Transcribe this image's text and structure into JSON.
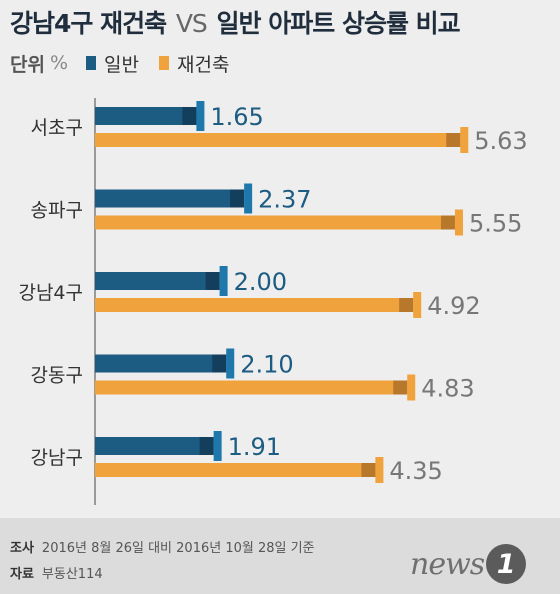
{
  "title": {
    "main": "강남4구 재건축",
    "vs": "VS",
    "rest": "일반 아파트 상승률 비교"
  },
  "legend": {
    "unit_label": "단위",
    "unit": "%"
  },
  "colors": {
    "general": "#1c5b82",
    "general_cap": "#1f78ab",
    "general_dark": "#143f5c",
    "rebuild": "#f0a23c",
    "rebuild_cap": "#f0a23c",
    "rebuild_dark": "#b8782c",
    "axis": "#9a9a9a",
    "general_text": "#1c5b82",
    "rebuild_text": "#777777"
  },
  "chart_data": {
    "type": "bar",
    "orientation": "horizontal",
    "categories": [
      "서초구",
      "송파구",
      "강남4구",
      "강동구",
      "강남구"
    ],
    "series": [
      {
        "name": "일반",
        "values": [
          1.65,
          2.37,
          2.0,
          2.1,
          1.91
        ],
        "labels": [
          "1.65",
          "2.37",
          "2.00",
          "2.10",
          "1.91"
        ]
      },
      {
        "name": "재건축",
        "values": [
          5.63,
          5.55,
          4.92,
          4.83,
          4.35
        ],
        "labels": [
          "5.63",
          "5.55",
          "4.92",
          "4.83",
          "4.35"
        ]
      }
    ],
    "xlim": [
      0,
      6
    ],
    "grid": false,
    "legend_position": "top-left"
  },
  "footer": {
    "survey_label": "조사",
    "survey_text": "2016년 8월 26일 대비 2016년 10월 28일 기준",
    "source_label": "자료",
    "source_text": "부동산114",
    "logo_word": "news",
    "logo_mark": "1"
  }
}
